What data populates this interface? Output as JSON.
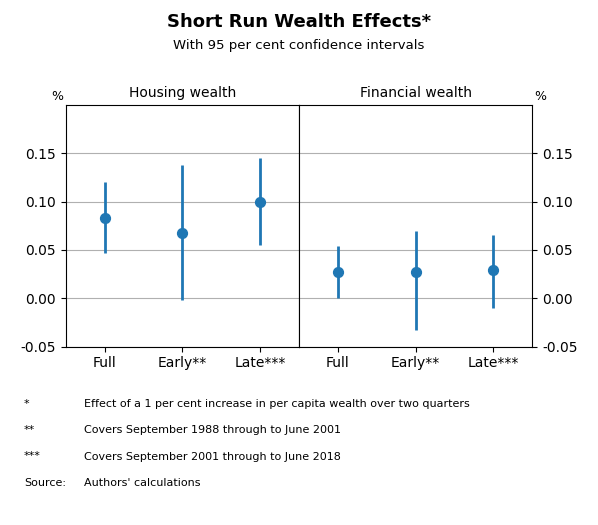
{
  "title": "Short Run Wealth Effects*",
  "subtitle": "With 95 per cent confidence intervals",
  "footnotes": [
    [
      "*",
      "Effect of a 1 per cent increase in per capita wealth over two quarters"
    ],
    [
      "**",
      "Covers September 1988 through to June 2001"
    ],
    [
      "***",
      "Covers September 2001 through to June 2018"
    ],
    [
      "Source:",
      "Authors' calculations"
    ]
  ],
  "chart_data": [
    {
      "type": "scatter",
      "title": "Housing wealth",
      "y_label": "%",
      "categories": [
        "Full",
        "Early**",
        "Late***"
      ],
      "values": [
        0.083,
        0.067,
        0.1
      ],
      "ci_low": [
        0.047,
        -0.002,
        0.055
      ],
      "ci_high": [
        0.12,
        0.138,
        0.145
      ],
      "ylim": [
        -0.05,
        0.2
      ],
      "yticks": [
        -0.05,
        {
          "value": 0.0,
          "label": "0.00"
        },
        0.05,
        {
          "value": 0.1,
          "label": "0.10"
        },
        0.15
      ],
      "grid": true
    },
    {
      "type": "scatter",
      "title": "Financial wealth",
      "y_label": "%",
      "categories": [
        "Full",
        "Early**",
        "Late***"
      ],
      "values": [
        0.027,
        0.027,
        0.029
      ],
      "ci_low": [
        0.0,
        -0.033,
        -0.01
      ],
      "ci_high": [
        0.054,
        0.07,
        0.065
      ],
      "ylim": [
        -0.05,
        0.2
      ],
      "yticks": [
        -0.05,
        {
          "value": 0.0,
          "label": "0.00"
        },
        0.05,
        {
          "value": 0.1,
          "label": "0.10"
        },
        0.15
      ],
      "grid": true
    }
  ]
}
